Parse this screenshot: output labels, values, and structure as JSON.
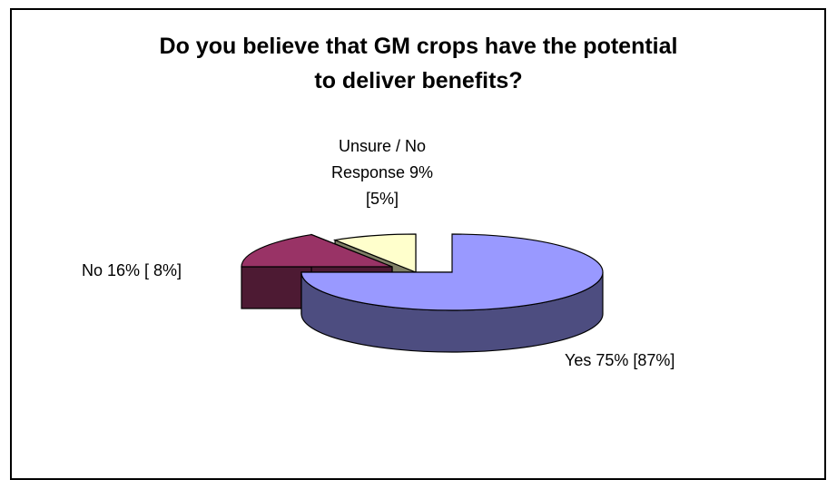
{
  "chart_data": {
    "type": "pie",
    "style": "3d-exploded",
    "title_lines": [
      "Do you believe that GM crops have the potential",
      "to deliver benefits?"
    ],
    "slices": [
      {
        "name": "Yes",
        "value": 75,
        "bracket_value": 87,
        "color": "#9999ff",
        "side_color": "#4d4d80",
        "label": "Yes 75% [87%]"
      },
      {
        "name": "No",
        "value": 16,
        "bracket_value": 8,
        "color": "#993366",
        "side_color": "#4d1a33",
        "label": "No 16% [ 8%]"
      },
      {
        "name": "Unsure / No Response",
        "value": 9,
        "bracket_value": 5,
        "color": "#ffffcc",
        "side_color": "#808066",
        "label_lines": [
          "Unsure / No",
          "Response 9%",
          "[5%]"
        ]
      }
    ],
    "legend": "none",
    "grid": false
  }
}
